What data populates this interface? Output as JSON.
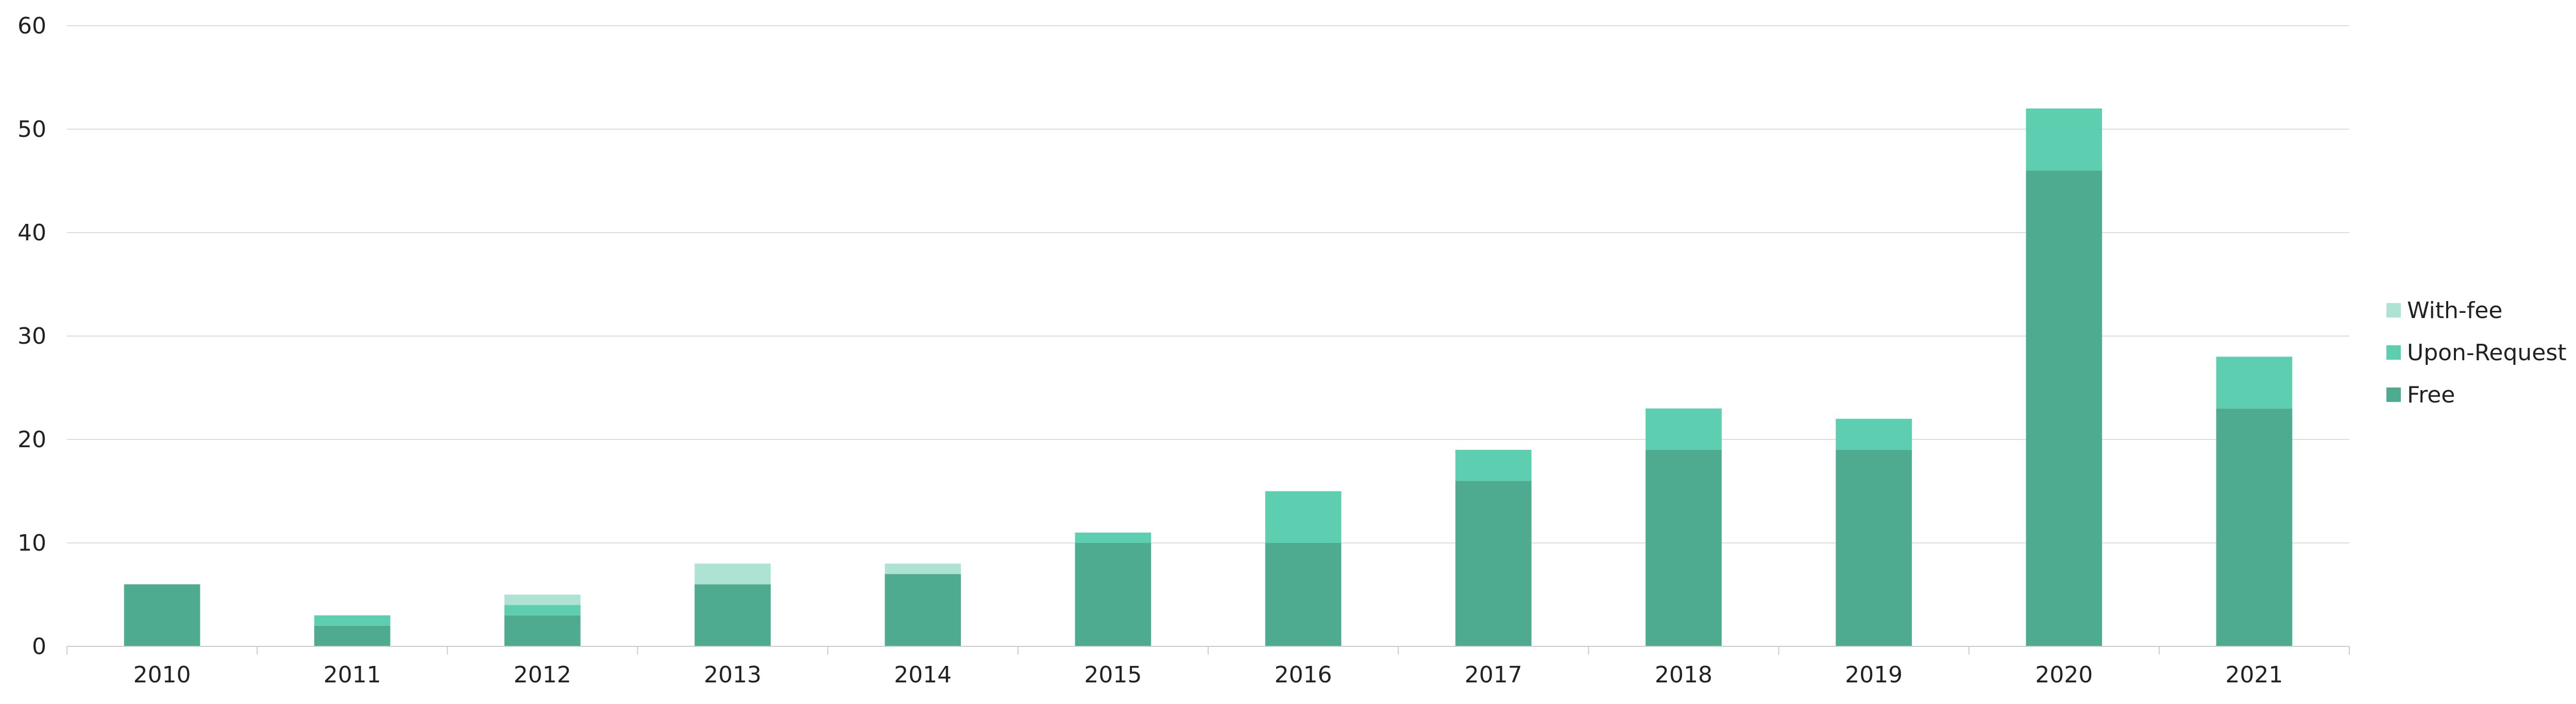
{
  "chart_data": {
    "type": "bar",
    "stacked": true,
    "title": "",
    "xlabel": "",
    "ylabel": "",
    "categories": [
      "2010",
      "2011",
      "2012",
      "2013",
      "2014",
      "2015",
      "2016",
      "2017",
      "2018",
      "2019",
      "2020",
      "2021"
    ],
    "series": [
      {
        "name": "Free",
        "color": "#4eab8f",
        "values": [
          6,
          2,
          3,
          6,
          7,
          10,
          10,
          16,
          19,
          19,
          46,
          23
        ]
      },
      {
        "name": "Upon-Request",
        "color": "#5dceb0",
        "values": [
          0,
          1,
          1,
          0,
          0,
          1,
          5,
          3,
          4,
          3,
          6,
          5
        ]
      },
      {
        "name": "With-fee",
        "color": "#aee3d3",
        "values": [
          0,
          0,
          1,
          2,
          1,
          0,
          0,
          0,
          0,
          0,
          0,
          0
        ]
      }
    ],
    "ylim": [
      0,
      60
    ],
    "yticks": [
      0,
      10,
      20,
      30,
      40,
      50,
      60
    ],
    "grid": true,
    "legend_position": "right",
    "legend_order": [
      "With-fee",
      "Upon-Request",
      "Free"
    ]
  }
}
